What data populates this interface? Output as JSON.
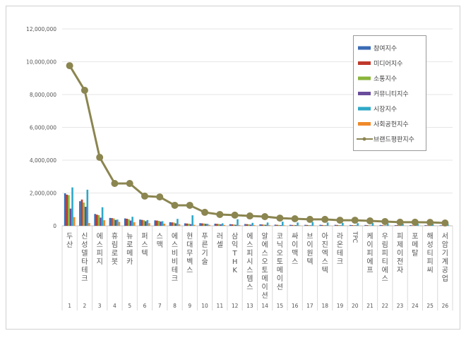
{
  "chart_data": {
    "type": "bar+line",
    "title": "",
    "xlabel": "",
    "ylabel": "",
    "ylim": [
      0,
      12000000
    ],
    "yticks": [
      "0",
      "2,000,000",
      "4,000,000",
      "6,000,000",
      "8,000,000",
      "10,000,000",
      "12,000,000"
    ],
    "grid": true,
    "legend_position": "top-right",
    "categories": [
      "두산",
      "신성델타테크",
      "에스피지",
      "휴림로봇",
      "뉴로메카",
      "퍼스텍",
      "스맥",
      "에스비비테크",
      "현대무벡스",
      "푸른기술",
      "러셀",
      "삼익THK",
      "에스피시스템스",
      "알에스오토메이션",
      "코닉오토메이션",
      "싸이맥스",
      "브이원텍",
      "아진엑스텍",
      "라온테크",
      "TPC",
      "케이피에프",
      "우림피티에스",
      "피제이전자",
      "포메탈",
      "해성티피씨",
      "서암기계공업"
    ],
    "ranks": [
      "1",
      "2",
      "3",
      "4",
      "5",
      "6",
      "7",
      "8",
      "9",
      "10",
      "11",
      "12",
      "13",
      "14",
      "15",
      "16",
      "17",
      "18",
      "19",
      "20",
      "21",
      "22",
      "23",
      "24",
      "25",
      "26"
    ],
    "series": [
      {
        "name": "참여지수",
        "type": "bar",
        "color": "#3a6bb5",
        "values": [
          1980000,
          1500000,
          720000,
          480000,
          450000,
          380000,
          330000,
          220000,
          150000,
          160000,
          130000,
          100000,
          110000,
          90000,
          70000,
          60000,
          60000,
          60000,
          60000,
          50000,
          50000,
          50000,
          40000,
          40000,
          40000,
          30000
        ]
      },
      {
        "name": "미디어지수",
        "type": "bar",
        "color": "#c0392b",
        "values": [
          1900000,
          1600000,
          680000,
          470000,
          430000,
          360000,
          320000,
          210000,
          140000,
          150000,
          120000,
          90000,
          100000,
          80000,
          60000,
          50000,
          50000,
          50000,
          50000,
          40000,
          40000,
          40000,
          40000,
          30000,
          30000,
          30000
        ]
      },
      {
        "name": "소통지수",
        "type": "bar",
        "color": "#8ab43c",
        "values": [
          1870000,
          1420000,
          650000,
          450000,
          400000,
          340000,
          300000,
          200000,
          130000,
          140000,
          110000,
          80000,
          90000,
          70000,
          50000,
          50000,
          40000,
          40000,
          40000,
          40000,
          30000,
          30000,
          30000,
          30000,
          30000,
          20000
        ]
      },
      {
        "name": "커뮤니티지수",
        "type": "bar",
        "color": "#6a4c9c",
        "values": [
          1050000,
          1160000,
          500000,
          360000,
          320000,
          280000,
          260000,
          150000,
          100000,
          120000,
          90000,
          60000,
          70000,
          60000,
          40000,
          40000,
          30000,
          30000,
          30000,
          30000,
          20000,
          20000,
          20000,
          20000,
          20000,
          20000
        ]
      },
      {
        "name": "시장지수",
        "type": "bar",
        "color": "#2fa8c7",
        "values": [
          2340000,
          2200000,
          1130000,
          380000,
          550000,
          350000,
          280000,
          420000,
          640000,
          120000,
          150000,
          400000,
          180000,
          200000,
          250000,
          200000,
          230000,
          200000,
          180000,
          160000,
          170000,
          150000,
          130000,
          120000,
          110000,
          100000
        ]
      },
      {
        "name": "사회공헌지수",
        "type": "bar",
        "color": "#f08a2a",
        "values": [
          530000,
          170000,
          340000,
          240000,
          220000,
          160000,
          130000,
          100000,
          60000,
          60000,
          50000,
          40000,
          40000,
          40000,
          30000,
          30000,
          20000,
          20000,
          20000,
          20000,
          20000,
          20000,
          10000,
          10000,
          10000,
          10000
        ]
      },
      {
        "name": "브랜드평판지수",
        "type": "line",
        "color": "#8b8550",
        "values": [
          9760000,
          8260000,
          4170000,
          2580000,
          2580000,
          1810000,
          1760000,
          1250000,
          1250000,
          820000,
          690000,
          650000,
          600000,
          560000,
          470000,
          430000,
          390000,
          390000,
          340000,
          340000,
          300000,
          260000,
          220000,
          220000,
          210000,
          170000
        ]
      }
    ]
  }
}
